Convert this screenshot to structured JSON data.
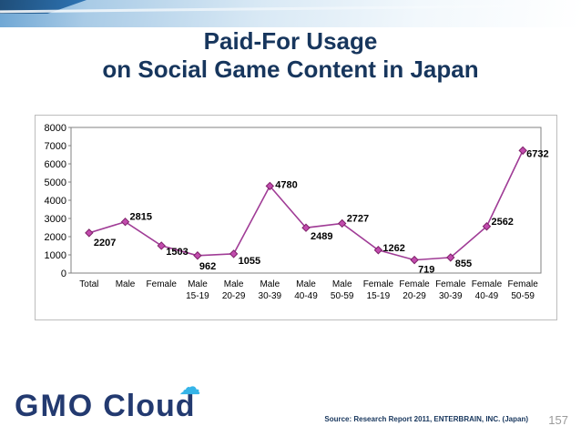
{
  "slide": {
    "title_line1": "Paid-For Usage",
    "title_line2": "on Social Game Content in Japan"
  },
  "footer": {
    "logo_gmo": "GMO",
    "logo_cloud": "Cloud",
    "cloud_icon": "☁",
    "source": "Source: Research Report 2011, ENTERBRAIN, INC. (Japan)",
    "page_number": "157"
  },
  "chart_data": {
    "type": "line",
    "title": "Paid-For Usage on Social Game Content in Japan",
    "categories": [
      "Total",
      "Male",
      "Female",
      "Male 15-19",
      "Male 20-29",
      "Male 30-39",
      "Male 40-49",
      "Male 50-59",
      "Female 15-19",
      "Female 20-29",
      "Female 30-39",
      "Female 40-49",
      "Female 50-59"
    ],
    "values": [
      2207,
      2815,
      1503,
      962,
      1055,
      4780,
      2489,
      2727,
      1262,
      719,
      855,
      2562,
      6732
    ],
    "ylim": [
      0,
      8000
    ],
    "ytick_step": 1000,
    "xlabel": "",
    "ylabel": "",
    "grid": false,
    "legend": "none",
    "series_color": "#a03c96",
    "marker_fill": "#c24bae",
    "marker_stroke": "#7e2269",
    "label_color": "#000000"
  }
}
